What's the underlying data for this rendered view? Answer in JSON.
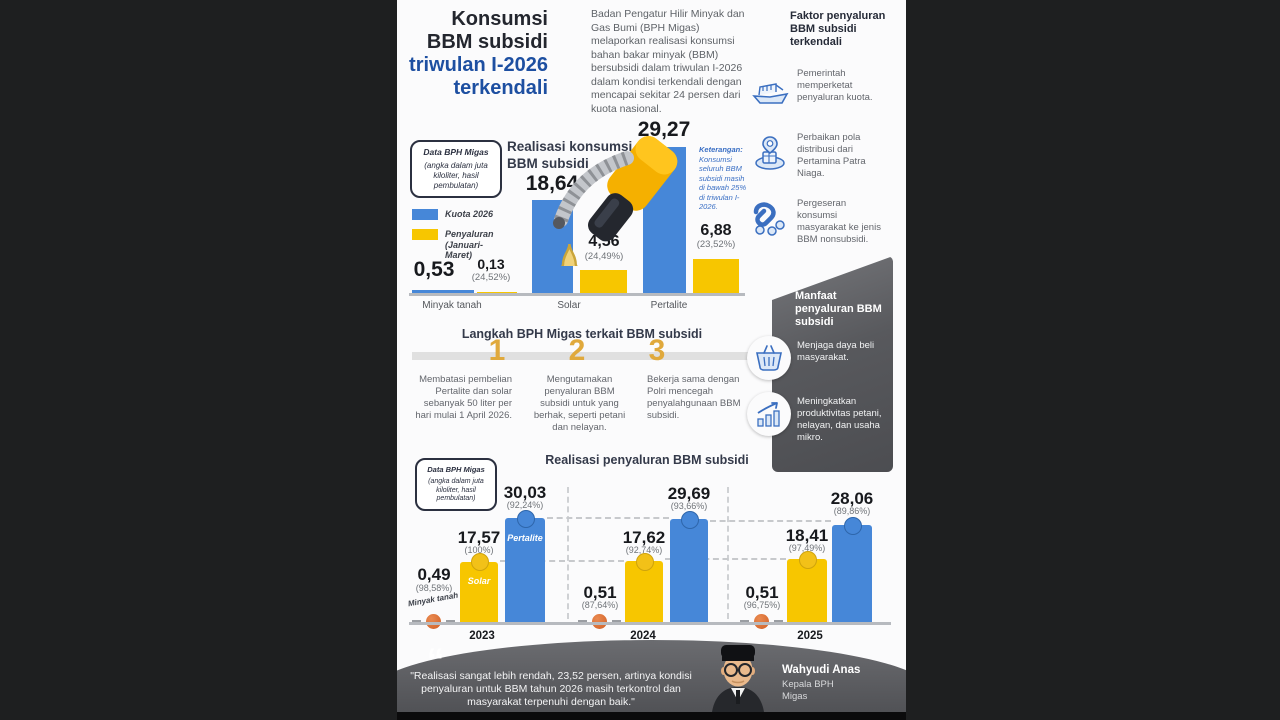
{
  "header": {
    "title_dark": "Konsumsi BBM subsidi",
    "title_blue_1": "triwulan",
    "title_blue_2": "I-2026",
    "title_blue_3": "terkendali",
    "intro": "Badan Pengatur Hilir Minyak dan Gas Bumi (BPH Migas) melaporkan realisasi konsumsi bahan bakar minyak (BBM) bersubsidi dalam triwulan I-2026 dalam kondisi terkendali dengan mencapai sekitar 24 persen dari kuota nasional."
  },
  "factors": {
    "title": "Faktor penyaluran BBM subsidi terkendali",
    "items": [
      {
        "icon": "ship-icon",
        "text": "Pemerintah memperketat penyaluran kuota."
      },
      {
        "icon": "distribution-icon",
        "text": "Perbaikan pola distribusi dari Pertamina Patra Niaga."
      },
      {
        "icon": "magnet-icon",
        "text": "Pergeseran konsumsi masyarakat ke jenis BBM nonsubsidi."
      }
    ]
  },
  "data_source_box": {
    "title": "Data BPH Migas",
    "note": "(angka dalam juta kiloliter, hasil pembulatan)"
  },
  "keterangan": {
    "label": "Keterangan:",
    "text": "Konsumsi seluruh BBM subsidi masih di bawah 25% di triwulan I-2026."
  },
  "steps": {
    "title": "Langkah BPH Migas terkait BBM subsidi",
    "items": [
      {
        "num": "1",
        "text": "Membatasi pembelian Pertalite dan solar sebanyak 50 liter per hari mulai 1 April 2026."
      },
      {
        "num": "2",
        "text": "Mengutamakan penyaluran BBM subsidi untuk yang berhak, seperti petani dan nelayan."
      },
      {
        "num": "3",
        "text": "Bekerja sama dengan Polri mencegah penyalahgunaan BBM subsidi."
      }
    ]
  },
  "benefits": {
    "title": "Manfaat penyaluran BBM subsidi",
    "items": [
      {
        "icon": "basket-icon",
        "text": "Menjaga daya beli masyarakat."
      },
      {
        "icon": "growth-icon",
        "text": "Meningkatkan produktivitas petani, nelayan, dan usaha mikro."
      }
    ]
  },
  "quote": {
    "text": "\"Realisasi sangat lebih rendah, 23,52 persen, artinya kondisi penyaluran untuk BBM tahun 2026 masih terkontrol dan masyarakat terpenuhi dengan baik.\"",
    "name": "Wahyudi Anas",
    "role": "Kepala BPH Migas"
  },
  "chart_data": [
    {
      "type": "bar",
      "title": "Realisasi konsumsi BBM subsidi",
      "unit_note": "angka dalam juta kiloliter, hasil pembulatan",
      "categories": [
        "Minyak tanah",
        "Solar",
        "Pertalite"
      ],
      "series": [
        {
          "name": "Kuota 2026",
          "color": "#4687d8",
          "values": [
            0.53,
            18.64,
            29.27
          ],
          "labels": [
            "0,53",
            "18,64",
            "29,27"
          ]
        },
        {
          "name": "Penyaluran (Januari-Maret)",
          "color": "#f7c600",
          "values": [
            0.13,
            4.56,
            6.88
          ],
          "labels": [
            "0,13",
            "4,56",
            "6,88"
          ],
          "pct_labels": [
            "(24,52%)",
            "(24,49%)",
            "(23,52%)"
          ]
        }
      ],
      "ylim": [
        0,
        30
      ],
      "grid": false,
      "legend_position": "left"
    },
    {
      "type": "bar",
      "title": "Realisasi penyaluran BBM subsidi",
      "unit_note": "angka dalam juta kiloliter, hasil pembulatan",
      "categories": [
        "2023",
        "2024",
        "2025"
      ],
      "series": [
        {
          "name": "Minyak tanah",
          "color": "#d96c2f",
          "values": [
            0.49,
            0.51,
            0.51
          ],
          "labels": [
            "0,49",
            "0,51",
            "0,51"
          ],
          "pct_labels": [
            "(98,58%)",
            "(87,64%)",
            "(96,75%)"
          ]
        },
        {
          "name": "Solar",
          "color": "#f7c600",
          "values": [
            17.57,
            17.62,
            18.41
          ],
          "labels": [
            "17,57",
            "17,62",
            "18,41"
          ],
          "pct_labels": [
            "(100%)",
            "(92,74%)",
            "(97,49%)"
          ]
        },
        {
          "name": "Pertalite",
          "color": "#4687d8",
          "values": [
            30.03,
            29.69,
            28.06
          ],
          "labels": [
            "30,03",
            "29,69",
            "28,06"
          ],
          "pct_labels": [
            "(92,24%)",
            "(93,66%)",
            "(89,86%)"
          ]
        }
      ],
      "ylim": [
        0,
        31
      ],
      "grid": false,
      "legend_position": "in-bar"
    }
  ],
  "colors": {
    "blue_bar": "#4687d8",
    "yellow_bar": "#f7c600",
    "orange_dot": "#d96c2f",
    "accent_blue": "#1d4fa1",
    "gold_number": "#e0a93c",
    "panel_gray": "#58595d"
  }
}
